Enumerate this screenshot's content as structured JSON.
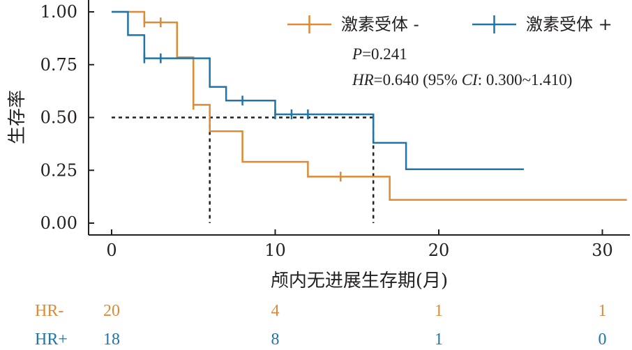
{
  "chart_data": {
    "type": "line",
    "subtype": "kaplan-meier",
    "title": "",
    "xlabel": "颅内无进展生存期(月)",
    "ylabel": "生存率",
    "xlim": [
      -0.5,
      31.5
    ],
    "ylim": [
      -0.03,
      1.03
    ],
    "xticks": [
      0,
      10,
      20,
      30
    ],
    "xtick_labels": [
      "0",
      "10",
      "20",
      "30"
    ],
    "yticks": [
      0,
      0.25,
      0.5,
      0.75,
      1.0
    ],
    "ytick_labels": [
      "0.00",
      "0.25",
      "0.50",
      "0.75",
      "1.00"
    ],
    "grid": false,
    "legend_position": "top-right",
    "colors": {
      "hr_neg": "#dd8a36",
      "hr_pos": "#1f74a8",
      "median_line": "#231f20",
      "text": "#231f20"
    },
    "series": [
      {
        "name": "激素受体 -",
        "color": "#dd8a36",
        "steps": [
          [
            0,
            1.0
          ],
          [
            2,
            0.95
          ],
          [
            4,
            0.785
          ],
          [
            5,
            0.56
          ],
          [
            6,
            0.435
          ],
          [
            8,
            0.29
          ],
          [
            12,
            0.22
          ],
          [
            17,
            0.11
          ],
          [
            31.5,
            0.11
          ]
        ],
        "censored": [
          [
            2,
            0.95
          ],
          [
            3,
            0.95
          ],
          [
            5,
            0.56
          ],
          [
            14,
            0.22
          ]
        ]
      },
      {
        "name": "激素受体 +",
        "color": "#1f74a8",
        "steps": [
          [
            0,
            1.0
          ],
          [
            1,
            0.89
          ],
          [
            2,
            0.78
          ],
          [
            6,
            0.645
          ],
          [
            7,
            0.58
          ],
          [
            10,
            0.515
          ],
          [
            16,
            0.38
          ],
          [
            18,
            0.255
          ],
          [
            25.2,
            0.255
          ]
        ],
        "censored": [
          [
            2,
            0.78
          ],
          [
            3,
            0.78
          ],
          [
            8,
            0.58
          ],
          [
            10,
            0.515
          ],
          [
            11,
            0.515
          ],
          [
            12,
            0.515
          ]
        ]
      }
    ],
    "median_lines": [
      {
        "x": 6,
        "y": 0.5
      },
      {
        "x": 16,
        "y": 0.5
      }
    ],
    "annotations": {
      "p_label": "P",
      "p_value": "=0.241",
      "hr_label": "HR",
      "hr_mid": "=0.640 (95% ",
      "ci_label": "CI",
      "hr_tail": ": 0.300~1.410)"
    },
    "risk_table": {
      "times": [
        0,
        10,
        20,
        30
      ],
      "rows": [
        {
          "label": "HR-",
          "color": "#dd8a36",
          "values": [
            "20",
            "4",
            "1",
            "1"
          ]
        },
        {
          "label": "HR+",
          "color": "#1f74a8",
          "values": [
            "18",
            "8",
            "1",
            "0"
          ]
        }
      ]
    }
  }
}
